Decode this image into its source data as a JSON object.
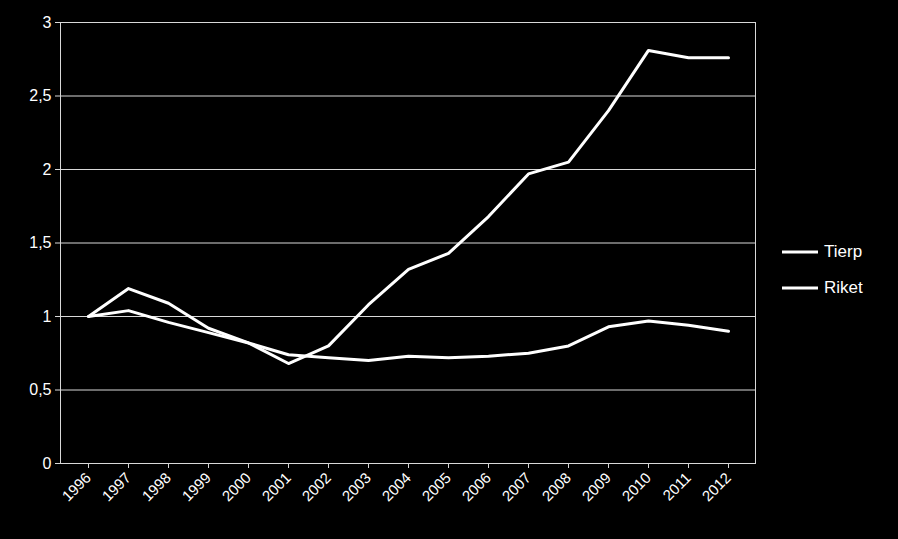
{
  "chart_data": {
    "type": "line",
    "categories": [
      "1996",
      "1997",
      "1998",
      "1999",
      "2000",
      "2001",
      "2002",
      "2003",
      "2004",
      "2005",
      "2006",
      "2007",
      "2008",
      "2009",
      "2010",
      "2011",
      "2012"
    ],
    "series": [
      {
        "name": "Tierp",
        "color": "#ffffff",
        "values": [
          1.0,
          1.19,
          1.09,
          0.92,
          0.82,
          0.68,
          0.8,
          1.08,
          1.32,
          1.43,
          1.68,
          1.97,
          2.05,
          2.4,
          2.81,
          2.76,
          2.76
        ]
      },
      {
        "name": "Riket",
        "color": "#ffffff",
        "values": [
          1.0,
          1.04,
          0.96,
          0.89,
          0.82,
          0.74,
          0.72,
          0.7,
          0.73,
          0.72,
          0.73,
          0.75,
          0.8,
          0.93,
          0.97,
          0.94,
          0.9
        ]
      }
    ],
    "ylim": [
      0,
      3
    ],
    "yticks": [
      0,
      {
        "value": 0.5,
        "label": "0,5"
      },
      1,
      {
        "value": 1.5,
        "label": "1,5"
      },
      2,
      {
        "value": 2.5,
        "label": "2,5"
      },
      3
    ],
    "grid": true,
    "legend": "right"
  }
}
